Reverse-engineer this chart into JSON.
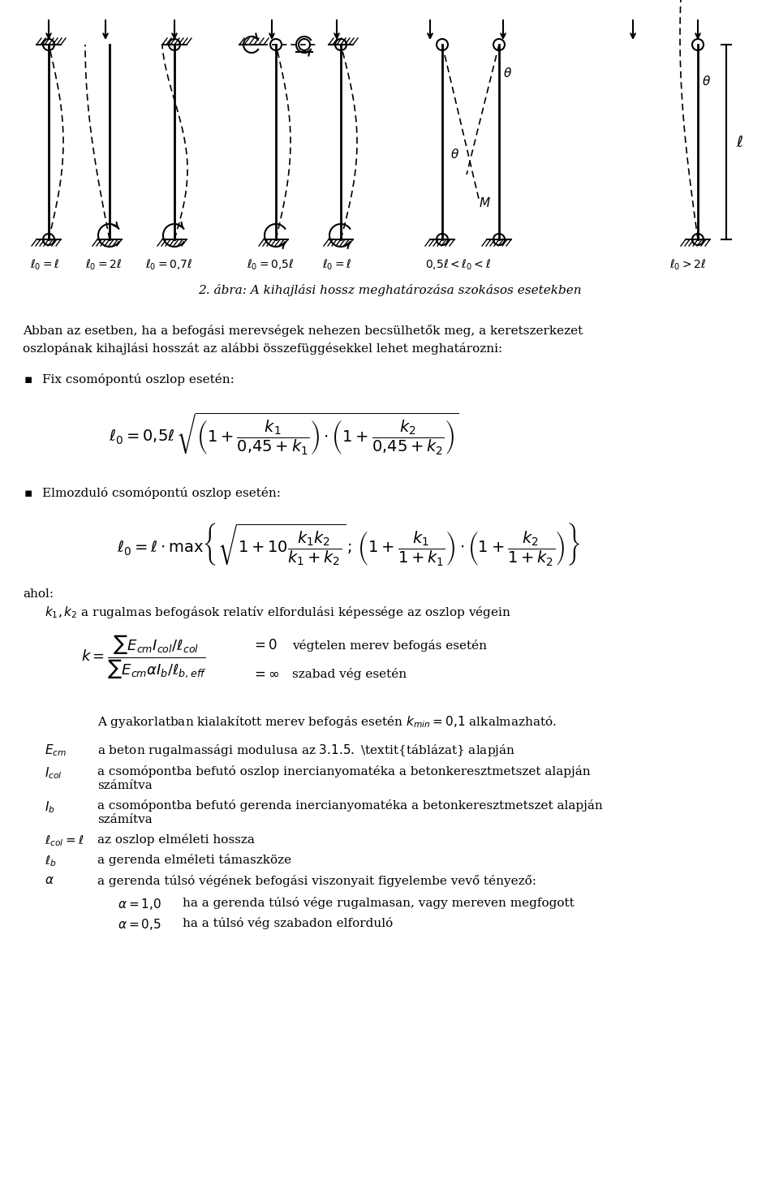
{
  "bg_color": "#ffffff",
  "fig_width": 9.6,
  "fig_height": 14.7,
  "dpi": 100,
  "caption": "2. ábra: A kihajlási hossz meghatározása szokásos esetekben",
  "intro_line1": "Abban az esetben, ha a befogási merevségek nehezen becsülhetők meg, a keretszerkezet",
  "intro_line2": "oszlopának kihajlási hosszát az alábbi összefüggésekkel lehet meghatározni:",
  "bullet1_label": "Fix csomópontú oszlop esetén:",
  "bullet2_label": "Elmozduló csomópontú oszlop esetén:",
  "ahol_text": "ahol:",
  "k12_text": "$k_1, k_2$ a rugalmas befogások relatív elfordulási képessége az oszlop végein",
  "k_formula_label": "$k = $",
  "k_num": "$\\sum E_{cm} I_{col} / \\ell_{col}$",
  "k_den": "$\\sum E_{cm} \\alpha I_b / \\ell_{b,eff}$",
  "eq0_text": "$= 0$",
  "eq0_desc": "végtelen merev befogás esetén",
  "eqinf_text": "$= \\infty$",
  "eqinf_desc": "szabad vég esetén",
  "practice_line": "A gyakorlatban kialakított merev befogás esetén $k_{min} = 0,1$ alkalmazható.",
  "Ecm_sym": "$E_{cm}$",
  "Ecm_desc": "a beton rugalmassági modulusa az $3.1.5.$ $táblázat$ alapján",
  "Icol_sym": "$I_{col}$",
  "Icol_desc": "a csomópontba befutó oszlop inercianyomatéka a betonkeresztmetszet alapján",
  "Icol_desc2": "számítva",
  "Ib_sym": "$I_b$",
  "Ib_desc": "a csomópontba befutó gerenda inercianyomatéka a betonkeresztmetszet alapján",
  "Ib_desc2": "számítva",
  "lcol_sym": "$\\ell_{col} = \\ell$",
  "lcol_desc": "az oszlop elméleti hossza",
  "lb_sym": "$\\ell_b$",
  "lb_desc": "a gerenda elméleti támaszköze",
  "alpha_sym": "$\\alpha$",
  "alpha_desc": "a gerenda túlsó végének befogási viszonyait figyelembe vevő tényező:",
  "alpha1_eq": "$\\alpha = 1,0$",
  "alpha1_desc": "ha a gerenda túlsó vége rugalmasan, vagy mereven megfogott",
  "alpha05_eq": "$\\alpha = 0,5$",
  "alpha05_desc": "ha a túlsó vég szabadon elforduló"
}
